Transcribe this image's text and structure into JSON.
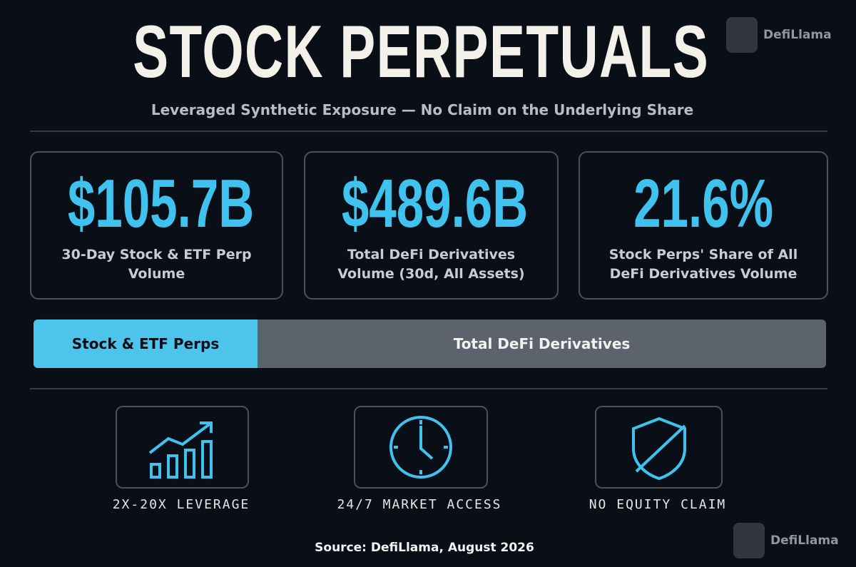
{
  "header": {
    "title": "STOCK PERPETUALS",
    "subtitle": "Leveraged Synthetic Exposure — No Claim on the Underlying Share",
    "logo": "DefiLlama"
  },
  "stats": [
    {
      "value": "$105.7B",
      "label": "30-Day Stock & ETF Perp Volume"
    },
    {
      "value": "$489.6B",
      "label": "Total DeFi Derivatives Volume (30d, All Assets)"
    },
    {
      "value": "21.6%",
      "label": "Stock Perps' Share of All DeFi Derivatives Volume"
    }
  ],
  "bar": {
    "segments": [
      "Stock & ETF Perps",
      "Total DeFi Derivatives"
    ]
  },
  "features": [
    "2X-20X LEVERAGE",
    "24/7 MARKET ACCESS",
    "NO EQUITY CLAIM"
  ],
  "footer": {
    "source": "Source: DefiLlama, August 2026",
    "logo": "DefiLlama"
  }
}
